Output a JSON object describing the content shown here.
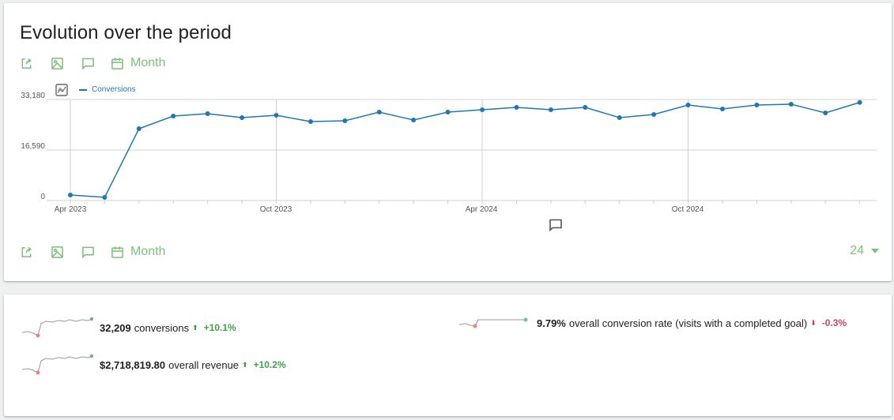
{
  "evolution": {
    "title": "Evolution over the period",
    "toolbar": {
      "export_icon": "export-icon",
      "image_icon": "image-icon",
      "annotation_icon": "annotation-icon",
      "calendar_icon": "calendar-icon",
      "period_label": "Month"
    },
    "limit": {
      "value": "24"
    },
    "legend": {
      "series_picker_icon": "series-picker-icon",
      "label": "Conversions"
    }
  },
  "chart_data": {
    "type": "line",
    "title": "",
    "xlabel": "",
    "ylabel": "",
    "ylim": [
      0,
      33180
    ],
    "y_ticks": [
      "0",
      "16,590",
      "33,180"
    ],
    "x_tick_labels": [
      "Apr 2023",
      "Oct 2023",
      "Apr 2024",
      "Oct 2024"
    ],
    "x": [
      "Apr 2023",
      "May 2023",
      "Jun 2023",
      "Jul 2023",
      "Aug 2023",
      "Sep 2023",
      "Oct 2023",
      "Nov 2023",
      "Dec 2023",
      "Jan 2024",
      "Feb 2024",
      "Mar 2024",
      "Apr 2024",
      "May 2024",
      "Jun 2024",
      "Jul 2024",
      "Aug 2024",
      "Sep 2024",
      "Oct 2024",
      "Nov 2024",
      "Dec 2024",
      "Jan 2025",
      "Feb 2025",
      "Mar 2025"
    ],
    "series": [
      {
        "name": "Conversions",
        "color": "#1f78b4",
        "values": [
          1810,
          1040,
          23590,
          27730,
          28510,
          27210,
          27990,
          25920,
          26180,
          29030,
          26440,
          29030,
          29810,
          30580,
          29810,
          30580,
          27210,
          28250,
          31360,
          30070,
          31360,
          31620,
          28770,
          32209
        ]
      }
    ],
    "grid": true,
    "legend_position": "top-left"
  },
  "sparklines": [
    {
      "value": "32,209",
      "label": "conversions",
      "trend": "+10.1%",
      "direction": "up"
    },
    {
      "value": "$2,718,819.80",
      "label": "overall revenue",
      "trend": "+10.2%",
      "direction": "up"
    },
    {
      "value": "9.79%",
      "label": "overall conversion rate (visits with a completed goal)",
      "trend": "-0.3%",
      "direction": "down"
    }
  ],
  "colors": {
    "accent_green": "#7cbf7c",
    "series_blue": "#1f78b4",
    "trend_up": "#43a047",
    "trend_down": "#d4445f"
  }
}
